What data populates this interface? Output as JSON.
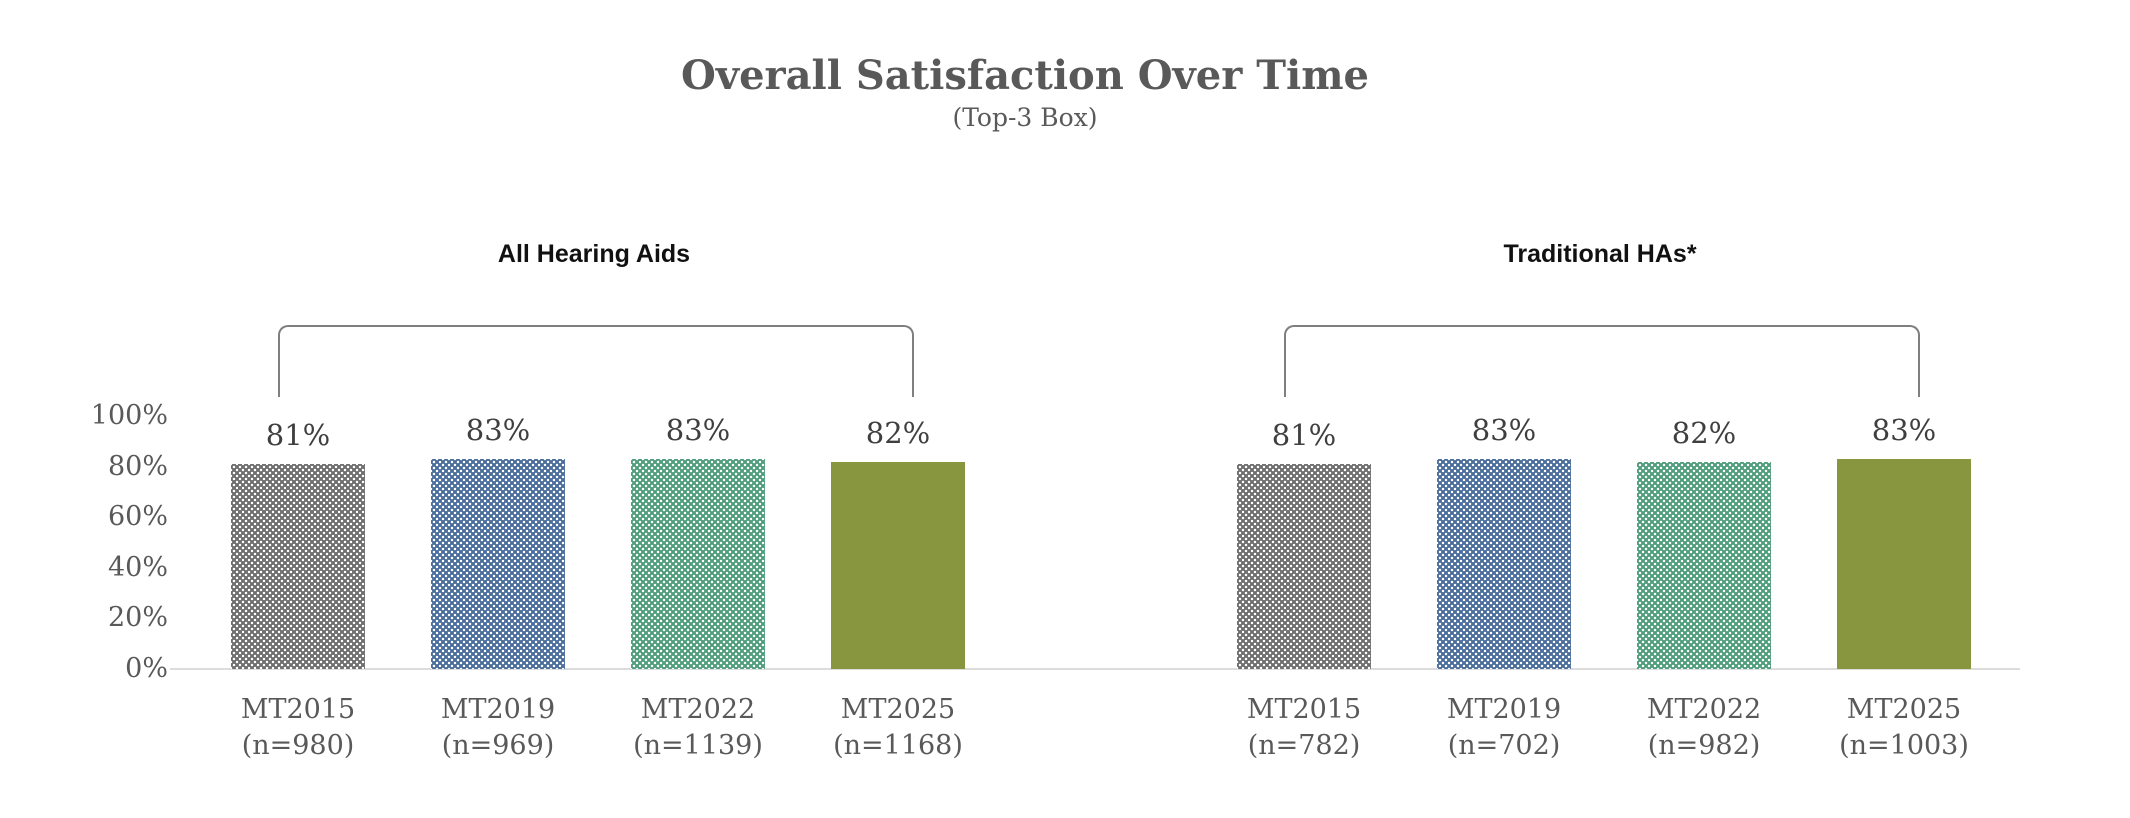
{
  "title": "Overall Satisfaction Over Time",
  "subtitle": "(Top-3 Box)",
  "colors": {
    "title_text": "#595959",
    "axis_text": "#595959",
    "value_text": "#3f3f3f",
    "group_label_text": "#111111",
    "bracket": "#7f7f7f",
    "axis_line": "#dcdcdc",
    "series": [
      "#6e6e6e",
      "#4a6d9c",
      "#4f9d7b",
      "#889640"
    ]
  },
  "chart_data": {
    "type": "bar",
    "title": "Overall Satisfaction Over Time",
    "subtitle": "(Top-3 Box)",
    "ylim": [
      0,
      100
    ],
    "yticks": [
      0,
      20,
      40,
      60,
      80,
      100
    ],
    "ytick_labels": [
      "0%",
      "20%",
      "40%",
      "60%",
      "80%",
      "100%"
    ],
    "grid": false,
    "legend": "none",
    "bar_patterns": [
      "dotted",
      "dotted",
      "dotted",
      "solid"
    ],
    "groups": [
      {
        "label": "All Hearing Aids",
        "categories": [
          "MT2015",
          "MT2019",
          "MT2022",
          "MT2025"
        ],
        "n_labels": [
          "(n=980)",
          "(n=969)",
          "(n=1139)",
          "(n=1168)"
        ],
        "values": [
          81,
          83,
          83,
          82
        ],
        "value_labels": [
          "81%",
          "83%",
          "83%",
          "82%"
        ]
      },
      {
        "label": "Traditional HAs*",
        "categories": [
          "MT2015",
          "MT2019",
          "MT2022",
          "MT2025"
        ],
        "n_labels": [
          "(n=782)",
          "(n=702)",
          "(n=982)",
          "(n=1003)"
        ],
        "values": [
          81,
          83,
          82,
          83
        ],
        "value_labels": [
          "81%",
          "83%",
          "82%",
          "83%"
        ]
      }
    ]
  }
}
